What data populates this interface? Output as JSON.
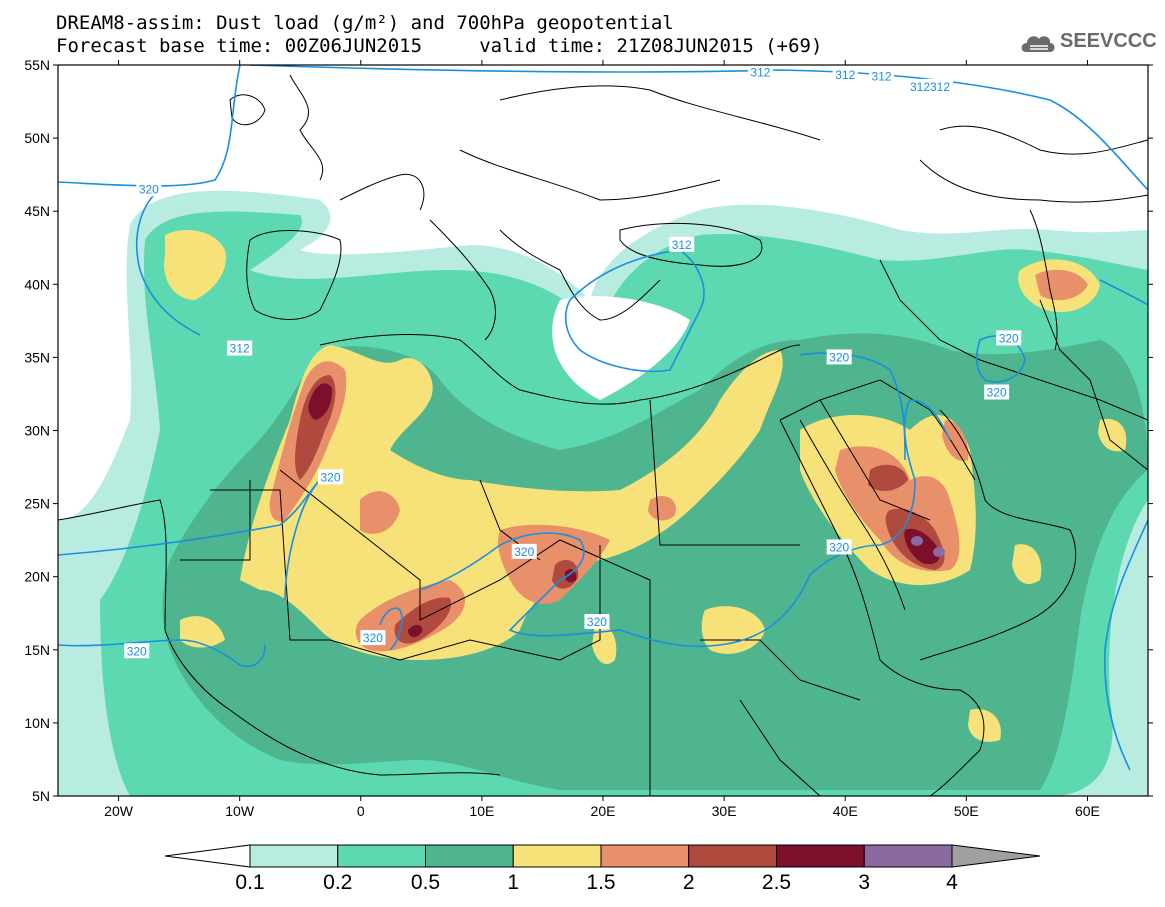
{
  "title": {
    "line1": "DREAM8-assim: Dust load (g/m²) and 700hPa geopotential",
    "line2": "Forecast base time: 00Z06JUN2015     valid time: 21Z08JUN2015 (+69)"
  },
  "logo": {
    "text": "SEEVCCC",
    "icon": "cloud-icon"
  },
  "map": {
    "lon_range": [
      -25,
      65
    ],
    "lat_range": [
      5,
      55
    ],
    "lat_ticks": [
      {
        "value": 55,
        "label": "55N"
      },
      {
        "value": 50,
        "label": "50N"
      },
      {
        "value": 45,
        "label": "45N"
      },
      {
        "value": 40,
        "label": "40N"
      },
      {
        "value": 35,
        "label": "35N"
      },
      {
        "value": 30,
        "label": "30N"
      },
      {
        "value": 25,
        "label": "25N"
      },
      {
        "value": 20,
        "label": "20N"
      },
      {
        "value": 15,
        "label": "15N"
      },
      {
        "value": 10,
        "label": "10N"
      },
      {
        "value": 5,
        "label": "5N"
      }
    ],
    "lon_ticks": [
      {
        "value": -20,
        "label": "20W"
      },
      {
        "value": -10,
        "label": "10W"
      },
      {
        "value": 0,
        "label": "0"
      },
      {
        "value": 10,
        "label": "10E"
      },
      {
        "value": 20,
        "label": "20E"
      },
      {
        "value": 30,
        "label": "30E"
      },
      {
        "value": 40,
        "label": "40E"
      },
      {
        "value": 50,
        "label": "50E"
      },
      {
        "value": 60,
        "label": "60E"
      }
    ],
    "contour_labels": [
      {
        "text": "320",
        "lon": -17.5,
        "lat": 46.5
      },
      {
        "text": "312",
        "lon": -10.0,
        "lat": 35.6
      },
      {
        "text": "320",
        "lon": -2.5,
        "lat": 26.8
      },
      {
        "text": "320",
        "lon": 13.5,
        "lat": 21.7
      },
      {
        "text": "320",
        "lon": 1.0,
        "lat": 15.8
      },
      {
        "text": "320",
        "lon": 19.5,
        "lat": 16.9
      },
      {
        "text": "320",
        "lon": -18.5,
        "lat": 14.9
      },
      {
        "text": "312",
        "lon": 26.5,
        "lat": 42.7
      },
      {
        "text": "320",
        "lon": 39.5,
        "lat": 35.0
      },
      {
        "text": "320",
        "lon": 53.5,
        "lat": 36.3
      },
      {
        "text": "320",
        "lon": 52.5,
        "lat": 32.6
      },
      {
        "text": "320",
        "lon": 39.5,
        "lat": 22.0
      },
      {
        "text": "312",
        "lon": 33.0,
        "lat": 54.5
      },
      {
        "text": "312",
        "lon": 40.0,
        "lat": 54.3
      },
      {
        "text": "312",
        "lon": 43.0,
        "lat": 54.2
      },
      {
        "text": "312312",
        "lon": 47.0,
        "lat": 53.5
      }
    ]
  },
  "colorbar": {
    "levels": [
      "0.1",
      "0.2",
      "0.5",
      "1",
      "1.5",
      "2",
      "2.5",
      "3",
      "4"
    ],
    "colors": [
      "#b8ece0",
      "#5cd9b0",
      "#4fb58e",
      "#f7e27a",
      "#e8906a",
      "#b04a3e",
      "#7d0f2d",
      "#8a6aa0"
    ],
    "under_color": "#ffffff",
    "over_color": "#a0a0a0"
  },
  "colors": {
    "contour": "#1a8fe0",
    "level_0_1": "#b8ece0",
    "level_0_2": "#5cd9b0",
    "level_0_5": "#4fb58e",
    "level_1": "#f7e27a",
    "level_1_5": "#e8906a",
    "level_2": "#b04a3e",
    "level_2_5": "#7d0f2d",
    "level_3": "#8a6aa0"
  }
}
